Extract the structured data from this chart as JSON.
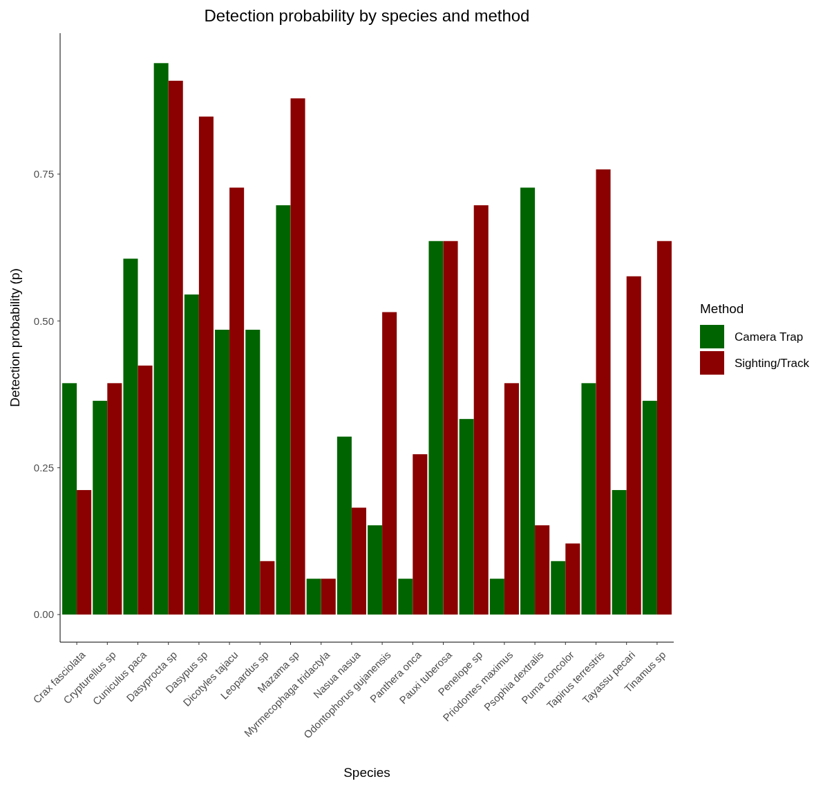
{
  "chart_data": {
    "type": "bar",
    "title": "Detection probability by species and method",
    "xlabel": "Species",
    "ylabel": "Detection probability (p)",
    "legend_title": "Method",
    "legend": "right",
    "grid": false,
    "categories": [
      "Crax fasciolata",
      "Crypturellus sp",
      "Cuniculus paca",
      "Dasyprocta sp",
      "Dasypus sp",
      "Dicotyles tajacu",
      "Leopardus sp",
      "Mazama sp",
      "Myrmecophaga tridactyla",
      "Nasua nasua",
      "Odontophorus gujanensis",
      "Panthera onca",
      "Pauxi tuberosa",
      "Penelope sp",
      "Priodontes maximus",
      "Psophia dextralis",
      "Puma concolor",
      "Tapirus terrestris",
      "Tayassu pecari",
      "Tinamus sp"
    ],
    "series": [
      {
        "name": "Camera Trap",
        "color": "#006400",
        "values": [
          0.394,
          0.364,
          0.606,
          0.939,
          0.545,
          0.485,
          0.485,
          0.697,
          0.061,
          0.303,
          0.152,
          0.061,
          0.636,
          0.333,
          0.061,
          0.727,
          0.091,
          0.394,
          0.212,
          0.364
        ]
      },
      {
        "name": "Sighting/Track",
        "color": "#8b0000",
        "values": [
          0.212,
          0.394,
          0.424,
          0.909,
          0.848,
          0.727,
          0.091,
          0.879,
          0.061,
          0.182,
          0.515,
          0.273,
          0.636,
          0.697,
          0.394,
          0.152,
          0.121,
          0.758,
          0.576,
          0.636
        ]
      }
    ],
    "ylim": [
      -0.047,
      0.99
    ],
    "yticks": [
      {
        "value": 0,
        "label": "0.00"
      },
      {
        "value": 0.25,
        "label": "0.25"
      },
      {
        "value": 0.5,
        "label": "0.50"
      },
      {
        "value": 0.75,
        "label": "0.75"
      }
    ]
  }
}
